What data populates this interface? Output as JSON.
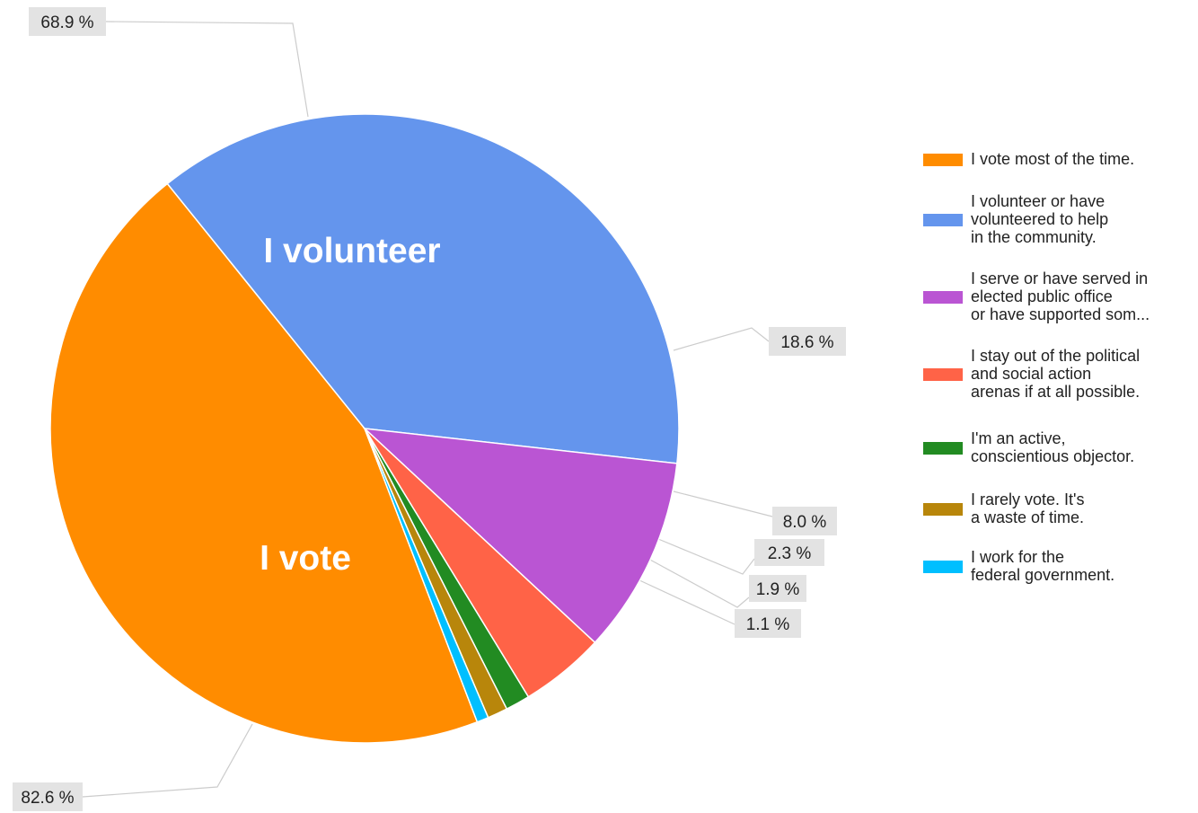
{
  "chart_data": {
    "type": "pie",
    "slices": [
      {
        "label": "I vote most of the time.",
        "legend_lines": [
          "I vote most of the time."
        ],
        "value": 82.6,
        "display": "82.6 %",
        "color": "#FF8C00"
      },
      {
        "label": "I volunteer or have volunteered to help in the community.",
        "legend_lines": [
          "I volunteer or have",
          "volunteered to help",
          "in the community."
        ],
        "value": 68.9,
        "display": "68.9 %",
        "color": "#6495ED"
      },
      {
        "label": "I serve or have served in elected public office or have supported som...",
        "legend_lines": [
          "I serve or have served in",
          "elected public office",
          "or have supported som..."
        ],
        "value": 18.6,
        "display": "18.6 %",
        "color": "#BA55D3"
      },
      {
        "label": "I stay out of the political and social action arenas if at all possible.",
        "legend_lines": [
          "I stay out of the political",
          "and social action",
          "arenas if at all possible."
        ],
        "value": 8.0,
        "display": "8.0 %",
        "color": "#FF6347"
      },
      {
        "label": "I'm an active, conscientious objector.",
        "legend_lines": [
          "I'm an active,",
          "conscientious objector."
        ],
        "value": 2.3,
        "display": "2.3 %",
        "color": "#228B22"
      },
      {
        "label": "I rarely vote. It's a waste of time.",
        "legend_lines": [
          "I rarely vote. It's",
          "a waste of time."
        ],
        "value": 1.9,
        "display": "1.9 %",
        "color": "#B8860B"
      },
      {
        "label": "I work for the federal government.",
        "legend_lines": [
          "I work for the",
          "federal government."
        ],
        "value": 1.1,
        "display": "1.1 %",
        "color": "#00BFFF"
      }
    ],
    "overlay_labels": [
      "I vote",
      "I volunteer"
    ],
    "legend_position": "right"
  }
}
